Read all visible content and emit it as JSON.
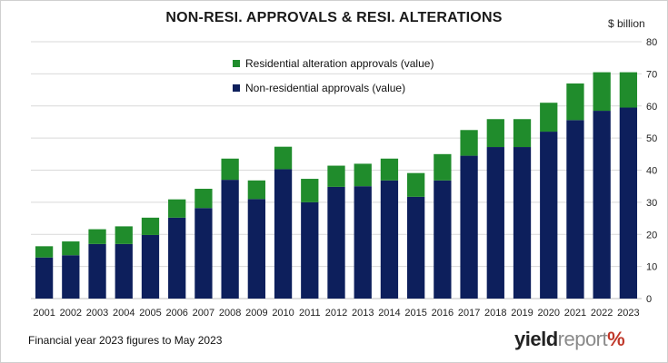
{
  "title": "NON-RESI. APPROVALS & RESI. ALTERATIONS",
  "unit_label": "$ billion",
  "footnote": "Financial year 2023 figures to May 2023",
  "logo": {
    "word1": "yield",
    "word2": "report",
    "symbol": "%"
  },
  "chart_data": {
    "type": "bar",
    "stacked": true,
    "categories": [
      "2001",
      "2002",
      "2003",
      "2004",
      "2005",
      "2006",
      "2007",
      "2008",
      "2009",
      "2010",
      "2011",
      "2012",
      "2013",
      "2014",
      "2015",
      "2016",
      "2017",
      "2018",
      "2019",
      "2020",
      "2021",
      "2022",
      "2023"
    ],
    "series": [
      {
        "name": "Non-residential approvals (value)",
        "color": "#0d1f5c",
        "values": [
          12.8,
          13.5,
          17.0,
          17.0,
          19.8,
          25.2,
          28.2,
          37.0,
          31.0,
          40.3,
          30.0,
          34.8,
          35.0,
          36.8,
          31.7,
          36.8,
          44.5,
          47.2,
          47.2,
          52.0,
          55.6,
          58.5,
          59.5
        ]
      },
      {
        "name": "Residential alteration approvals (value)",
        "color": "#208c2c",
        "values": [
          3.5,
          4.3,
          4.6,
          5.5,
          5.4,
          5.7,
          6.0,
          6.6,
          5.8,
          7.0,
          7.3,
          6.6,
          7.0,
          6.8,
          7.4,
          8.2,
          8.0,
          8.7,
          8.7,
          9.0,
          11.4,
          12.0,
          11.0
        ]
      }
    ],
    "y_axis": {
      "min": 0,
      "max": 80,
      "step": 10,
      "position": "right",
      "ticks": [
        "0",
        "10",
        "20",
        "30",
        "40",
        "50",
        "60",
        "70",
        "80"
      ]
    },
    "grid": true,
    "legend": {
      "placement": "top-center",
      "order": [
        1,
        0
      ]
    }
  }
}
